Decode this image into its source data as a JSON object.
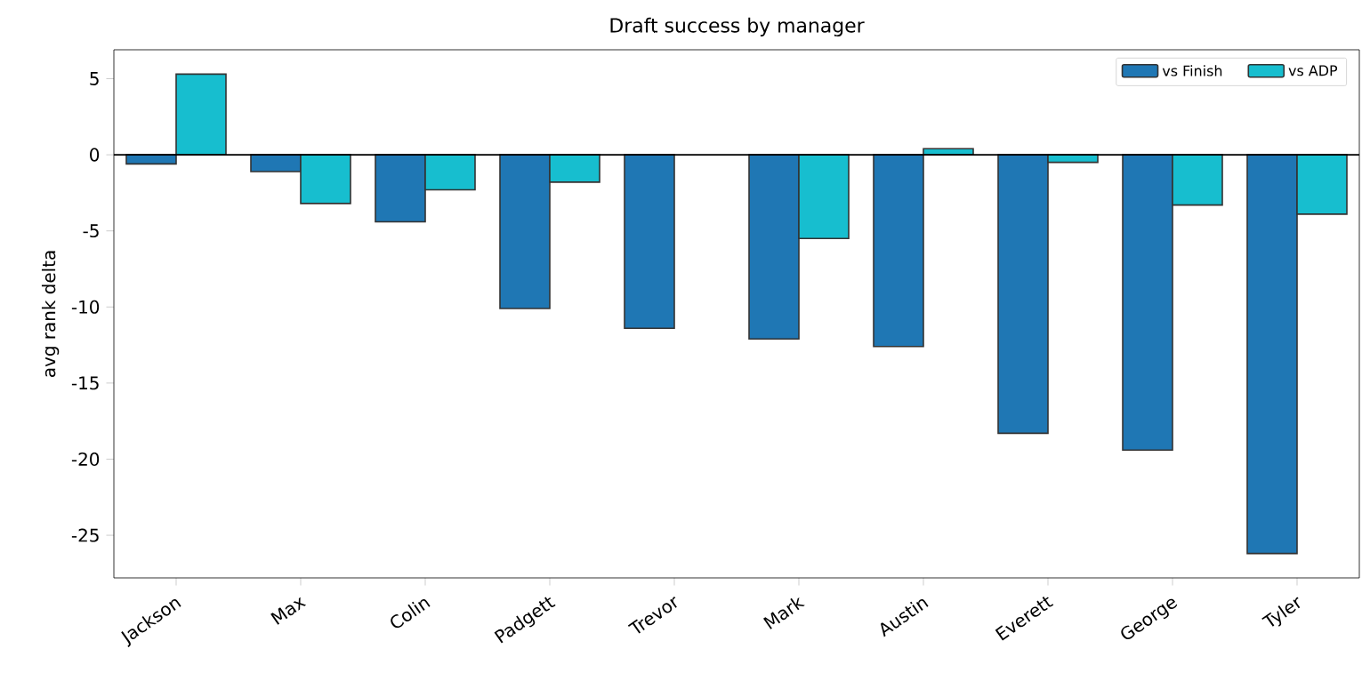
{
  "chart_data": {
    "type": "bar",
    "title": "Draft success by manager",
    "ylabel": "avg rank delta",
    "categories": [
      "Jackson",
      "Max",
      "Colin",
      "Padgett",
      "Trevor",
      "Mark",
      "Austin",
      "Everett",
      "George",
      "Tyler"
    ],
    "series": [
      {
        "name": "vs Finish",
        "color": "#1f77b4",
        "values": [
          -0.6,
          -1.1,
          -4.4,
          -10.1,
          -11.4,
          -12.1,
          -12.6,
          -18.3,
          -19.4,
          -26.2
        ]
      },
      {
        "name": "vs ADP",
        "color": "#17becf",
        "values": [
          5.3,
          -3.2,
          -2.3,
          -1.8,
          null,
          -5.5,
          0.4,
          -0.5,
          -3.3,
          -3.9
        ]
      }
    ],
    "ylim": [
      -27.8,
      6.9
    ],
    "yticks": [
      -25,
      -20,
      -15,
      -10,
      -5,
      0,
      5
    ],
    "ref_lines": [
      {
        "axis": "y",
        "value": 0,
        "color": "#000000"
      }
    ],
    "legend": "top right",
    "grid": false
  }
}
